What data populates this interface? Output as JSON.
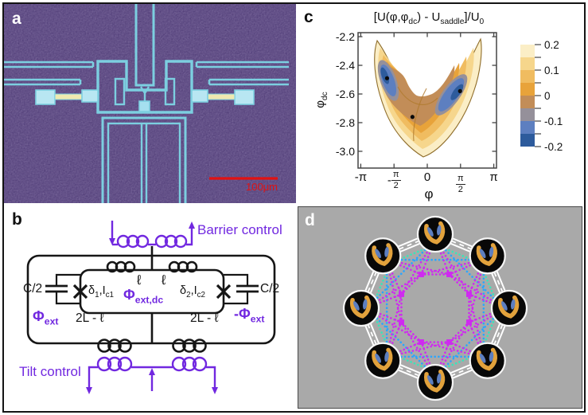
{
  "panel_labels": {
    "a": "a",
    "b": "b",
    "c": "c",
    "d": "d"
  },
  "panel_a": {
    "description": "false-color micrograph of superconducting flux qubit device",
    "scale_bar_label": "100μm",
    "colors": {
      "background": "#3e2a68",
      "trace": "#7ccfe0",
      "pad_fill": "#b8e6f2",
      "bridge_yellow": "#efe9b0",
      "scale_bar": "#e11212",
      "label": "#ffffff"
    }
  },
  "panel_b": {
    "labels": {
      "barrier_control": "Barrier control",
      "tilt_control": "Tilt control",
      "cap_left": "C/2",
      "cap_right": "C/2",
      "jj_left": "δ_{1},I_{c1}",
      "jj_right": "δ_{2},I_{c2}",
      "ind_left": "ℓ",
      "ind_right": "ℓ",
      "flux_dc": "Φ_{ext,dc}",
      "flux_left": "Φ_{ext}",
      "flux_right": "-Φ_{ext}",
      "big_ind_left": "2L - ℓ",
      "big_ind_right": "2L - ℓ"
    },
    "colors": {
      "wire": "#161616",
      "control": "#7128e0"
    }
  },
  "chart_data": {
    "type": "contour",
    "title": "[U(φ,φ_{dc}) - U_{saddle}]/U_{0}",
    "xlabel": "φ",
    "ylabel": "φ_{dc}",
    "x_range": [
      -3.27,
      3.27
    ],
    "y_range": [
      -3.117,
      -2.172
    ],
    "x_ticks": [
      {
        "label": "-π",
        "value": -3.14159
      },
      {
        "label": "-π/2",
        "value": -1.5708
      },
      {
        "label": "0",
        "value": 0
      },
      {
        "label": "π/2",
        "value": 1.5708
      },
      {
        "label": "π",
        "value": 3.14159
      }
    ],
    "y_ticks": [
      {
        "label": "-2.2",
        "value": -2.2
      },
      {
        "label": "-2.4",
        "value": -2.4
      },
      {
        "label": "-2.6",
        "value": -2.6
      },
      {
        "label": "-2.8",
        "value": -2.8
      },
      {
        "label": "-3.0",
        "value": -3.0
      }
    ],
    "grid": false,
    "legend_position": "right-colorbar",
    "colorbar": {
      "tick_labels": [
        "0.2",
        "0.1",
        "0",
        "-0.1",
        "-0.2"
      ],
      "level_values": [
        0.2,
        0.15,
        0.1,
        0.05,
        0,
        -0.05,
        -0.1,
        -0.15,
        -0.2
      ],
      "band_colors_top_to_bottom": [
        "#fbeec6",
        "#f6d68c",
        "#f0bc60",
        "#e8a33a",
        "#c28d58",
        "#95909a",
        "#5d7fc0",
        "#2d5b9c"
      ]
    },
    "features": {
      "left_minimum": {
        "phi": -1.9,
        "phi_dc": -2.49
      },
      "right_minimum": {
        "phi": 1.55,
        "phi_dc": -2.58
      },
      "saddle": {
        "phi": -0.7,
        "phi_dc": -2.76
      }
    }
  },
  "panel_d": {
    "description": "ring network of 8 double-well potential nodes with couplers",
    "node_count": 8,
    "coupler_count": 8,
    "colors": {
      "background": "#a9a9a9",
      "node_fill": "#080808",
      "node_ring": "#f5f5f5",
      "road": "#ffffff",
      "nearest_link": "#38e6ba",
      "next_nearest_link": "#2aa6ff",
      "coupler_link": "#cf2af0",
      "thumb_orange": "#e2a23c",
      "thumb_blue": "#5d7fc0"
    }
  }
}
